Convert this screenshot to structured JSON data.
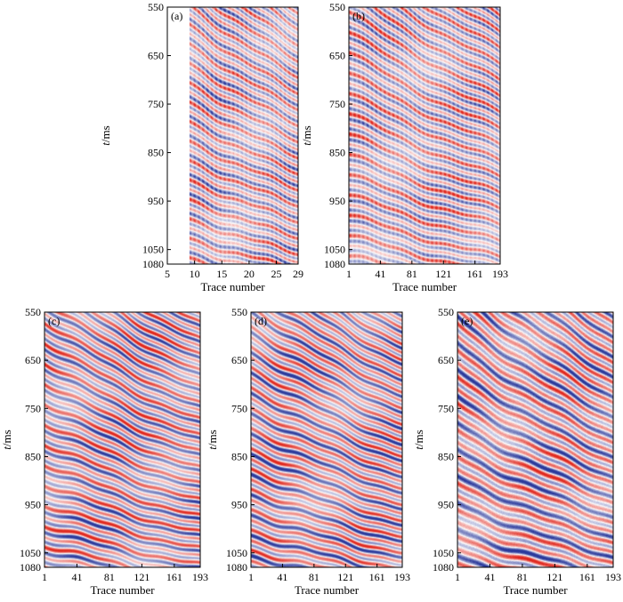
{
  "figure": {
    "ylabel_italic": "t",
    "ylabel_unit": "/ms",
    "xlabel": "Trace number"
  },
  "chart_data": [
    {
      "type": "heatmap",
      "panel": "(a)",
      "xlabel": "Trace number",
      "ylabel": "t/ms",
      "xlim": [
        5,
        29
      ],
      "ylim": [
        550,
        1080
      ],
      "y_inverted": true,
      "x_ticks": [
        5,
        10,
        15,
        20,
        25,
        29
      ],
      "y_ticks": [
        550,
        650,
        750,
        850,
        950,
        1050,
        1080
      ],
      "data_start_trace": 9,
      "colormap": [
        "#2b3a9c",
        "#ffffff",
        "#e0281e"
      ]
    },
    {
      "type": "heatmap",
      "panel": "(b)",
      "xlabel": "Trace number",
      "ylabel": "t/ms",
      "xlim": [
        1,
        193
      ],
      "ylim": [
        550,
        1080
      ],
      "y_inverted": true,
      "x_ticks": [
        1,
        41,
        81,
        121,
        161,
        193
      ],
      "y_ticks": [
        550,
        650,
        750,
        850,
        950,
        1050,
        1080
      ],
      "colormap": [
        "#2b3a9c",
        "#ffffff",
        "#e0281e"
      ]
    },
    {
      "type": "heatmap",
      "panel": "(c)",
      "xlabel": "Trace number",
      "ylabel": "t/ms",
      "xlim": [
        1,
        193
      ],
      "ylim": [
        550,
        1080
      ],
      "y_inverted": true,
      "x_ticks": [
        1,
        41,
        81,
        121,
        161,
        193
      ],
      "y_ticks": [
        550,
        650,
        750,
        850,
        950,
        1050,
        1080
      ],
      "colormap": [
        "#2b3a9c",
        "#ffffff",
        "#e0281e"
      ]
    },
    {
      "type": "heatmap",
      "panel": "(d)",
      "xlabel": "Trace number",
      "ylabel": "t/ms",
      "xlim": [
        1,
        193
      ],
      "ylim": [
        550,
        1080
      ],
      "y_inverted": true,
      "x_ticks": [
        1,
        41,
        81,
        121,
        161,
        193
      ],
      "y_ticks": [
        550,
        650,
        750,
        850,
        950,
        1050,
        1080
      ],
      "colormap": [
        "#2b3a9c",
        "#ffffff",
        "#e0281e"
      ]
    },
    {
      "type": "heatmap",
      "panel": "(e)",
      "xlabel": "Trace number",
      "ylabel": "t/ms",
      "xlim": [
        1,
        193
      ],
      "ylim": [
        550,
        1080
      ],
      "y_inverted": true,
      "x_ticks": [
        1,
        41,
        81,
        121,
        161,
        193
      ],
      "y_ticks": [
        550,
        650,
        750,
        850,
        950,
        1050,
        1080
      ],
      "colormap": [
        "#2b3a9c",
        "#ffffff",
        "#e0281e"
      ]
    }
  ]
}
